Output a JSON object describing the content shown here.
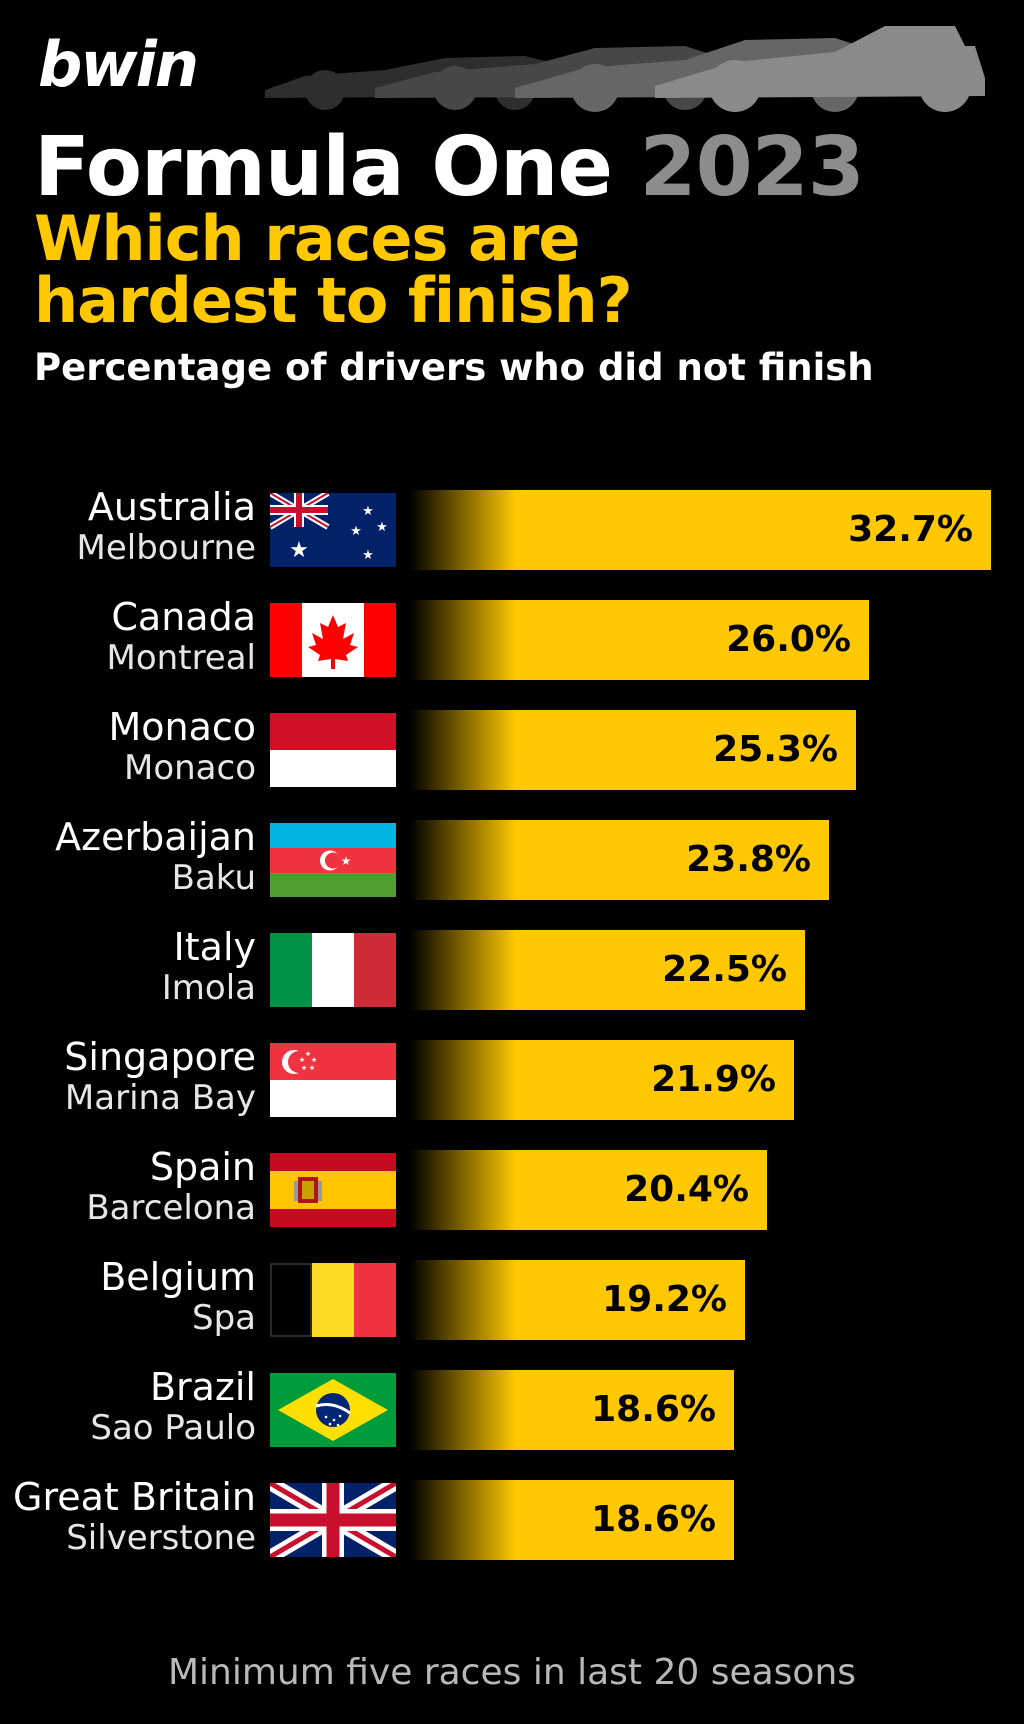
{
  "brand": "bwin",
  "header": {
    "title_main": "Formula One",
    "title_year": "2023",
    "headline_line1": "Which races are",
    "headline_line2": "hardest to finish?",
    "subtitle": "Percentage of drivers who did not finish"
  },
  "chart_data": {
    "type": "bar",
    "orientation": "horizontal",
    "title": "Which races are hardest to finish?",
    "subtitle": "Percentage of drivers who did not finish",
    "categories": [
      "Australia",
      "Canada",
      "Monaco",
      "Azerbaijan",
      "Italy",
      "Singapore",
      "Spain",
      "Belgium",
      "Brazil",
      "Great Britain"
    ],
    "circuits": [
      "Melbourne",
      "Montreal",
      "Monaco",
      "Baku",
      "Imola",
      "Marina Bay",
      "Barcelona",
      "Spa",
      "Sao Paulo",
      "Silverstone"
    ],
    "values": [
      32.7,
      26.0,
      25.3,
      23.8,
      22.5,
      21.9,
      20.4,
      19.2,
      18.6,
      18.6
    ],
    "value_labels": [
      "32.7%",
      "26.0%",
      "25.3%",
      "23.8%",
      "22.5%",
      "21.9%",
      "20.4%",
      "19.2%",
      "18.6%",
      "18.6%"
    ],
    "flags": [
      "australia-flag-icon",
      "canada-flag-icon",
      "monaco-flag-icon",
      "azerbaijan-flag-icon",
      "italy-flag-icon",
      "singapore-flag-icon",
      "spain-flag-icon",
      "belgium-flag-icon",
      "brazil-flag-icon",
      "great-britain-flag-icon"
    ],
    "bar_color": "#ffc800",
    "xlim": [
      0,
      32.7
    ],
    "grid": false,
    "legend": "none"
  },
  "footnote": "Minimum five races in last 20 seasons",
  "colors": {
    "background": "#000000",
    "accent": "#ffc800",
    "year": "#8c8c8c"
  }
}
